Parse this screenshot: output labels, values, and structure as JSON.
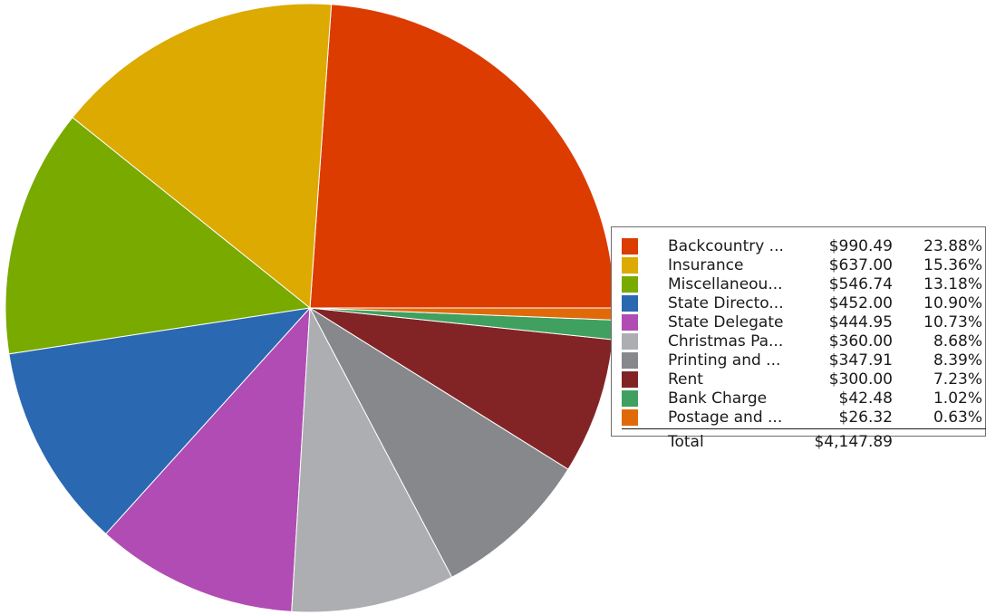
{
  "chart_data": {
    "type": "pie",
    "title": "",
    "slices": [
      {
        "label": "Backcountry ...",
        "value": 990.49,
        "amount": "$990.49",
        "percent": "23.88%",
        "color": "#dc3c00"
      },
      {
        "label": "Insurance",
        "value": 637.0,
        "amount": "$637.00",
        "percent": "15.36%",
        "color": "#dcaa00"
      },
      {
        "label": "Miscellaneou...",
        "value": 546.74,
        "amount": "$546.74",
        "percent": "13.18%",
        "color": "#78aa00"
      },
      {
        "label": "State Directo...",
        "value": 452.0,
        "amount": "$452.00",
        "percent": "10.90%",
        "color": "#2a68b2"
      },
      {
        "label": "State Delegate",
        "value": 444.95,
        "amount": "$444.95",
        "percent": "10.73%",
        "color": "#b04cb4"
      },
      {
        "label": "Christmas Pa...",
        "value": 360.0,
        "amount": "$360.00",
        "percent": "8.68%",
        "color": "#acaeb2"
      },
      {
        "label": "Printing and ...",
        "value": 347.91,
        "amount": "$347.91",
        "percent": "8.39%",
        "color": "#86888c"
      },
      {
        "label": "Rent",
        "value": 300.0,
        "amount": "$300.00",
        "percent": "7.23%",
        "color": "#822426"
      },
      {
        "label": "Bank Charge",
        "value": 42.48,
        "amount": "$42.48",
        "percent": "1.02%",
        "color": "#40a060"
      },
      {
        "label": "Postage and ...",
        "value": 26.32,
        "amount": "$26.32",
        "percent": "0.63%",
        "color": "#e06a0a"
      }
    ],
    "total_label": "Total",
    "total_amount": "$4,147.89",
    "start_angle_deg": 0,
    "direction": "counterclockwise",
    "legend_position": "right"
  }
}
